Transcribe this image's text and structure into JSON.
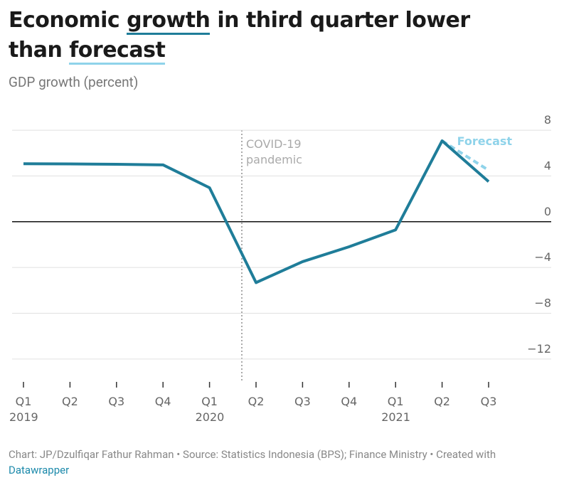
{
  "chart_data": {
    "type": "line",
    "title": [
      "Economic ",
      "growth",
      " in third quarter lower than ",
      "forecast"
    ],
    "subtitle": "GDP growth (percent)",
    "categories": [
      "Q1",
      "Q2",
      "Q3",
      "Q4",
      "Q1",
      "Q2",
      "Q3",
      "Q4",
      "Q1",
      "Q2",
      "Q3"
    ],
    "x_group_labels": [
      "2019",
      null,
      null,
      null,
      "2020",
      null,
      null,
      null,
      "2021",
      null,
      null
    ],
    "series": [
      {
        "color": "#1f7d99",
        "values": [
          5.07,
          5.05,
          5.02,
          4.97,
          2.97,
          -5.32,
          -3.49,
          -2.19,
          -0.71,
          7.07,
          3.51
        ]
      },
      {
        "name": "Forecast",
        "color": "#8fd3ea",
        "dashed": true,
        "values": [
          null,
          null,
          null,
          null,
          null,
          null,
          null,
          null,
          null,
          7.07,
          4.5
        ]
      }
    ],
    "ylim": [
      -14,
      9
    ],
    "yticks": [
      {
        "value": -12,
        "label": "−12"
      },
      {
        "value": -8,
        "label": "−8"
      },
      {
        "value": -4,
        "label": "−4"
      },
      0,
      4,
      8
    ],
    "grid": true,
    "annotation": [
      "COVID-19",
      "pandemic"
    ],
    "source": "Chart: JP/Dzulfiqar Fathur Rahman • Source: Statistics Indonesia (BPS); Finance Ministry • Created with ",
    "credit_link": "Datawrapper"
  }
}
